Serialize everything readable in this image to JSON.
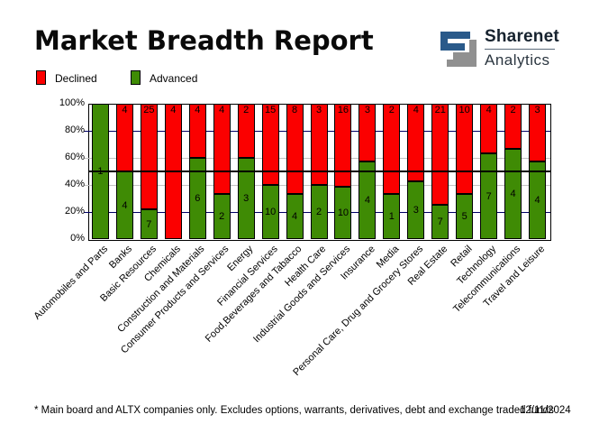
{
  "header": {
    "title": "Market Breadth Report",
    "logo": {
      "line1": "Sharenet",
      "line2": "Analytics",
      "blue": "#2a5a8a",
      "gray": "#909090"
    }
  },
  "legend": [
    {
      "label": "Declined",
      "color": "#fb0000"
    },
    {
      "label": "Advanced",
      "color": "#3f8b05"
    }
  ],
  "chart_data": {
    "type": "bar",
    "stacked": true,
    "normalized_to_percent": true,
    "title": "Market Breadth Report",
    "xlabel": "",
    "ylabel": "",
    "ylim": [
      0,
      100
    ],
    "y_ticks": [
      "0%",
      "20%",
      "40%",
      "60%",
      "80%",
      "100%"
    ],
    "grid": {
      "navy_at_percent": [
        20,
        80
      ],
      "gray_at_percent": [
        40,
        60
      ],
      "black_reference_percent": 50
    },
    "legend_position": "top-left",
    "categories": [
      "Automobiles and Parts",
      "Banks",
      "Basic Resources",
      "Chemicals",
      "Construction and Materials",
      "Consumer Products and Services",
      "Energy",
      "Financial Services",
      "Food,Beverages and Tabacco",
      "Health Care",
      "Industrial Goods and Services",
      "Insurance",
      "Media",
      "Personal Care, Drug and Grocery Stores",
      "Real Estate",
      "Retail",
      "Technology",
      "Telecommunications",
      "Travel and Leisure"
    ],
    "series": [
      {
        "name": "Declined",
        "color": "#fb0000",
        "values": [
          0,
          4,
          25,
          4,
          4,
          4,
          2,
          15,
          8,
          3,
          16,
          3,
          2,
          4,
          21,
          10,
          4,
          2,
          3
        ]
      },
      {
        "name": "Advanced",
        "color": "#3f8b05",
        "values": [
          1,
          4,
          7,
          0,
          6,
          2,
          3,
          10,
          4,
          2,
          10,
          4,
          1,
          3,
          7,
          5,
          7,
          4,
          4
        ]
      }
    ]
  },
  "footer": {
    "note": "* Main board and ALTX companies only. Excludes options, warrants, derivatives, debt and exchange traded funds",
    "date": "12/11/2024"
  }
}
